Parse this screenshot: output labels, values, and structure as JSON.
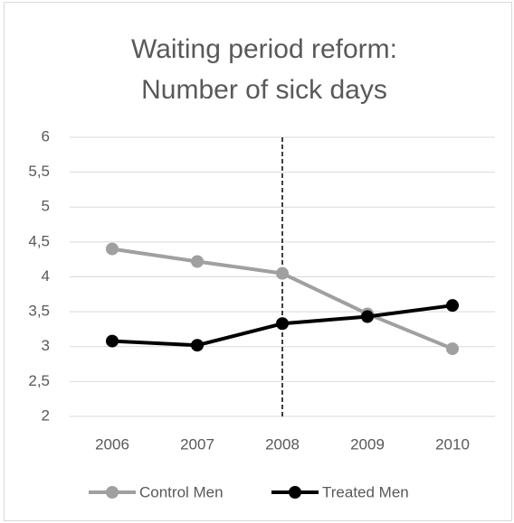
{
  "chart_data": {
    "type": "line",
    "title": [
      "Waiting period reform:",
      "Number of sick days"
    ],
    "categories": [
      "2006",
      "2007",
      "2008",
      "2009",
      "2010"
    ],
    "series": [
      {
        "name": "Control Men",
        "color": "#a0a0a0",
        "values": [
          4.4,
          4.22,
          4.05,
          3.47,
          2.97
        ]
      },
      {
        "name": "Treated Men",
        "color": "#000000",
        "values": [
          3.08,
          3.02,
          3.33,
          3.43,
          3.59
        ]
      }
    ],
    "ylim": [
      2,
      6
    ],
    "yticks": [
      2,
      {
        "value": 2.5,
        "label": "2,5"
      },
      3,
      {
        "value": 3.5,
        "label": "3,5"
      },
      4,
      {
        "value": 4.5,
        "label": "4,5"
      },
      5,
      {
        "value": 5.5,
        "label": "5,5"
      },
      6
    ],
    "grid": true,
    "vline_at": "2008",
    "legend": "bottom"
  }
}
